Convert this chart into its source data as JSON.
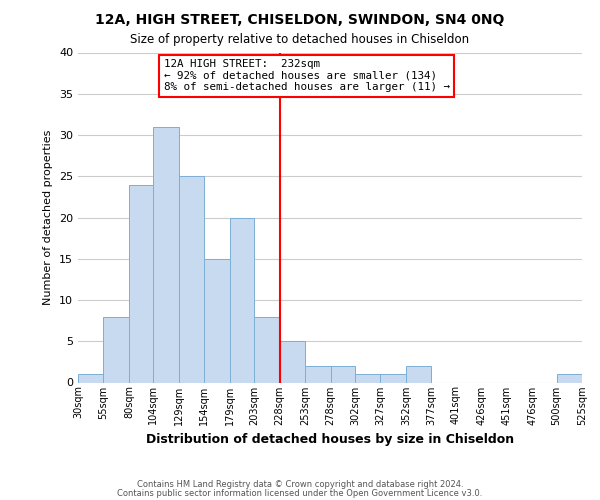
{
  "title": "12A, HIGH STREET, CHISELDON, SWINDON, SN4 0NQ",
  "subtitle": "Size of property relative to detached houses in Chiseldon",
  "xlabel": "Distribution of detached houses by size in Chiseldon",
  "ylabel": "Number of detached properties",
  "bar_color": "#c8daf0",
  "bar_edge_color": "#7bafd4",
  "background_color": "#ffffff",
  "grid_color": "#cccccc",
  "bin_edges": [
    30,
    55,
    80,
    104,
    129,
    154,
    179,
    203,
    228,
    253,
    278,
    302,
    327,
    352,
    377,
    401,
    426,
    451,
    476,
    500,
    525
  ],
  "bin_labels": [
    "30sqm",
    "55sqm",
    "80sqm",
    "104sqm",
    "129sqm",
    "154sqm",
    "179sqm",
    "203sqm",
    "228sqm",
    "253sqm",
    "278sqm",
    "302sqm",
    "327sqm",
    "352sqm",
    "377sqm",
    "401sqm",
    "426sqm",
    "451sqm",
    "476sqm",
    "500sqm",
    "525sqm"
  ],
  "counts": [
    1,
    8,
    24,
    31,
    25,
    15,
    20,
    8,
    5,
    2,
    2,
    1,
    1,
    2,
    0,
    0,
    0,
    0,
    0,
    1
  ],
  "property_line_x": 228,
  "property_label": "12A HIGH STREET:  232sqm",
  "annotation_line1": "← 92% of detached houses are smaller (134)",
  "annotation_line2": "8% of semi-detached houses are larger (11) →",
  "ylim": [
    0,
    40
  ],
  "yticks": [
    0,
    5,
    10,
    15,
    20,
    25,
    30,
    35,
    40
  ],
  "footer1": "Contains HM Land Registry data © Crown copyright and database right 2024.",
  "footer2": "Contains public sector information licensed under the Open Government Licence v3.0."
}
